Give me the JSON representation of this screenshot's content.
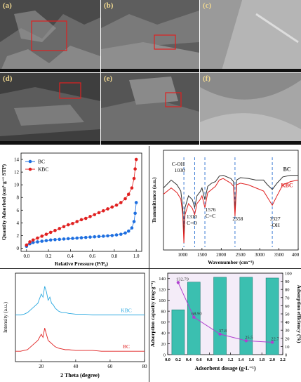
{
  "sem": {
    "labels": [
      "(a)",
      "(b)",
      "(c)",
      "(d)",
      "(e)",
      "(f)"
    ]
  },
  "bet": {
    "chart_data": {
      "type": "scatter",
      "xlabel": "Relative Pressure (P/P₀)",
      "ylabel": "Quantity Adsorbed (cm³·g⁻¹ STP)",
      "xlim": [
        -0.05,
        1.05
      ],
      "ylim": [
        -0.5,
        15
      ],
      "xticks": [
        "0.0",
        "0.2",
        "0.4",
        "0.6",
        "0.8",
        "1.0"
      ],
      "yticks": [
        "0",
        "2",
        "4",
        "6",
        "8",
        "10",
        "12",
        "14"
      ],
      "legend": "top-left",
      "series": [
        {
          "name": "BC",
          "color": "#1e6fe0",
          "x": [
            0.0,
            0.03,
            0.06,
            0.1,
            0.14,
            0.18,
            0.22,
            0.26,
            0.3,
            0.34,
            0.38,
            0.42,
            0.46,
            0.5,
            0.54,
            0.58,
            0.62,
            0.66,
            0.7,
            0.74,
            0.78,
            0.82,
            0.86,
            0.9,
            0.93,
            0.96,
            0.98,
            0.99,
            1.0
          ],
          "y": [
            0.3,
            0.7,
            0.9,
            1.0,
            1.1,
            1.2,
            1.3,
            1.35,
            1.4,
            1.45,
            1.5,
            1.55,
            1.6,
            1.65,
            1.7,
            1.75,
            1.8,
            1.85,
            1.9,
            1.95,
            2.0,
            2.1,
            2.2,
            2.4,
            2.7,
            3.2,
            4.2,
            5.5,
            7.2
          ]
        },
        {
          "name": "KBC",
          "color": "#e02020",
          "x": [
            0.0,
            0.03,
            0.06,
            0.1,
            0.14,
            0.18,
            0.22,
            0.26,
            0.3,
            0.34,
            0.38,
            0.42,
            0.46,
            0.5,
            0.54,
            0.58,
            0.62,
            0.66,
            0.7,
            0.74,
            0.78,
            0.82,
            0.86,
            0.9,
            0.93,
            0.96,
            0.98,
            0.99,
            1.0
          ],
          "y": [
            0.5,
            1.0,
            1.3,
            1.6,
            1.9,
            2.2,
            2.5,
            2.8,
            3.1,
            3.4,
            3.7,
            3.9,
            4.2,
            4.5,
            4.7,
            5.0,
            5.3,
            5.6,
            5.9,
            6.2,
            6.5,
            6.8,
            7.2,
            7.8,
            8.5,
            9.5,
            11.0,
            12.5,
            14.0
          ]
        }
      ]
    }
  },
  "ftir": {
    "chart_data": {
      "type": "line",
      "xlabel": "Wavenumber (cm⁻¹)",
      "ylabel": "Transmittance (a.u.)",
      "xlim": [
        500,
        4000
      ],
      "xticks": [
        "1000",
        "1500",
        "2000",
        "2500",
        "3000",
        "3500",
        "400"
      ],
      "series": [
        {
          "name": "BC",
          "color": "#333333",
          "x": [
            500,
            700,
            850,
            950,
            1000,
            1030,
            1060,
            1150,
            1250,
            1310,
            1370,
            1450,
            1500,
            1576,
            1650,
            1750,
            1850,
            1950,
            2050,
            2150,
            2250,
            2320,
            2358,
            2400,
            2500,
            2700,
            2900,
            3100,
            3200,
            3327,
            3450,
            3600,
            3800,
            4000
          ],
          "y": [
            0.7,
            0.8,
            0.74,
            0.66,
            0.45,
            0.1,
            0.45,
            0.6,
            0.55,
            0.45,
            0.6,
            0.65,
            0.7,
            0.55,
            0.72,
            0.76,
            0.78,
            0.85,
            0.86,
            0.84,
            0.82,
            0.78,
            0.4,
            0.8,
            0.83,
            0.82,
            0.8,
            0.8,
            0.74,
            0.68,
            0.76,
            0.84,
            0.86,
            0.86
          ]
        },
        {
          "name": "KBC",
          "color": "#e02020",
          "x": [
            500,
            700,
            850,
            950,
            1000,
            1030,
            1060,
            1150,
            1250,
            1310,
            1370,
            1450,
            1500,
            1576,
            1650,
            1750,
            1850,
            1950,
            2050,
            2150,
            2250,
            2320,
            2358,
            2400,
            2500,
            2700,
            2900,
            3100,
            3200,
            3327,
            3450,
            3600,
            3800,
            4000
          ],
          "y": [
            0.62,
            0.7,
            0.64,
            0.56,
            0.36,
            0.0,
            0.36,
            0.5,
            0.44,
            0.36,
            0.5,
            0.55,
            0.6,
            0.45,
            0.64,
            0.68,
            0.72,
            0.8,
            0.82,
            0.79,
            0.76,
            0.72,
            0.34,
            0.74,
            0.76,
            0.74,
            0.7,
            0.66,
            0.58,
            0.48,
            0.6,
            0.74,
            0.78,
            0.8
          ]
        }
      ],
      "annotations": [
        {
          "text": "C-OH",
          "x": 1030
        },
        {
          "text": "1030",
          "x": 1030
        },
        {
          "text": "1310",
          "x": 1310
        },
        {
          "text": "C=O",
          "x": 1310
        },
        {
          "text": "1576",
          "x": 1576
        },
        {
          "text": "C=C",
          "x": 1576
        },
        {
          "text": "2358",
          "x": 2358
        },
        {
          "text": "3327",
          "x": 3327
        },
        {
          "text": "-OH",
          "x": 3327
        }
      ]
    }
  },
  "xrd": {
    "chart_data": {
      "type": "line",
      "xlabel": "2 Theta (degree)",
      "ylabel": "Intensity (a.u.)",
      "xlim": [
        5,
        80
      ],
      "xticks": [
        "20",
        "40",
        "60",
        "80"
      ],
      "series": [
        {
          "name": "KBC",
          "color": "#29a8e0",
          "x": [
            5,
            8,
            10,
            12,
            14,
            16,
            18,
            20,
            21,
            22,
            23,
            24,
            25,
            26,
            27,
            28,
            30,
            32,
            34,
            36,
            40,
            45,
            50,
            55,
            60,
            65,
            70,
            75,
            80
          ],
          "y": [
            0.55,
            0.55,
            0.56,
            0.58,
            0.62,
            0.66,
            0.7,
            0.82,
            0.78,
            0.92,
            0.85,
            0.74,
            0.78,
            0.7,
            0.68,
            0.64,
            0.6,
            0.58,
            0.58,
            0.57,
            0.56,
            0.56,
            0.55,
            0.55,
            0.55,
            0.55,
            0.55,
            0.55,
            0.55
          ]
        },
        {
          "name": "BC",
          "color": "#e02020",
          "x": [
            5,
            8,
            10,
            12,
            14,
            16,
            18,
            20,
            21,
            22,
            23,
            24,
            25,
            26,
            27,
            28,
            30,
            32,
            34,
            36,
            40,
            45,
            50,
            55,
            60,
            65,
            70,
            75,
            80
          ],
          "y": [
            0.08,
            0.08,
            0.09,
            0.1,
            0.14,
            0.18,
            0.22,
            0.3,
            0.26,
            0.38,
            0.3,
            0.22,
            0.2,
            0.18,
            0.16,
            0.14,
            0.12,
            0.11,
            0.1,
            0.1,
            0.09,
            0.09,
            0.09,
            0.08,
            0.08,
            0.08,
            0.08,
            0.08,
            0.08
          ]
        }
      ]
    }
  },
  "dosage": {
    "chart_data": {
      "type": "bar",
      "xlabel": "Adsorbent dosage (g·L⁻¹)",
      "ylabel": "Adsorption capacity (mg·g⁻¹)",
      "y2label": "Adsorption efficiency (%)",
      "xlim": [
        0.0,
        2.2
      ],
      "ylim": [
        0,
        150
      ],
      "y2lim": [
        0,
        100
      ],
      "xticks": [
        "0.0",
        "0.2",
        "0.4",
        "0.6",
        "0.8",
        "1.0",
        "1.2",
        "1.4",
        "1.6",
        "1.8",
        "2.0",
        "2.2"
      ],
      "yticks": [
        "0",
        "20",
        "40",
        "60",
        "80",
        "100",
        "120",
        "140"
      ],
      "y2ticks": [
        "0",
        "10",
        "20",
        "30",
        "40",
        "50",
        "60",
        "70",
        "80",
        "90",
        "100"
      ],
      "bars": {
        "x": [
          0.2,
          0.5,
          1.0,
          1.5,
          2.0
        ],
        "efficiency": [
          55,
          89,
          95,
          95,
          94
        ],
        "color": "#3bbfb0"
      },
      "line": {
        "x": [
          0.2,
          0.5,
          1.0,
          1.5,
          2.0
        ],
        "capacity": [
          132.79,
          68.9,
          37.8,
          25.5,
          22.7
        ],
        "color": "#b040d0"
      },
      "point_labels": [
        "132.79",
        "68.90",
        "37.8",
        "25.5",
        "22.7"
      ]
    }
  }
}
